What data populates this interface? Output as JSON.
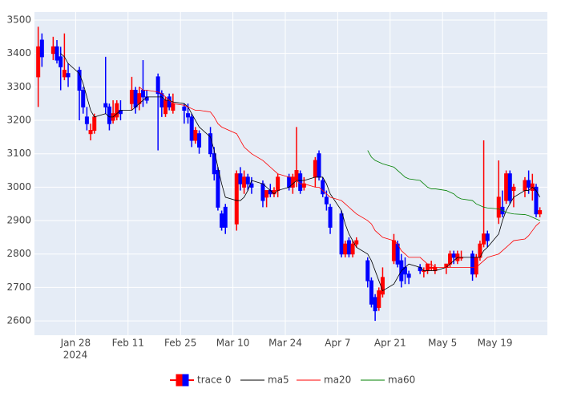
{
  "chart_data": {
    "type": "candlestick",
    "name": "trace 0",
    "increasing_color": "#ff0000",
    "decreasing_color": "#0000ff",
    "x": [
      "2024-01-18",
      "2024-01-19",
      "2024-01-22",
      "2024-01-23",
      "2024-01-24",
      "2024-01-25",
      "2024-01-26",
      "2024-01-29",
      "2024-01-30",
      "2024-01-31",
      "2024-02-01",
      "2024-02-02",
      "2024-02-05",
      "2024-02-06",
      "2024-02-07",
      "2024-02-08",
      "2024-02-09",
      "2024-02-12",
      "2024-02-13",
      "2024-02-14",
      "2024-02-15",
      "2024-02-16",
      "2024-02-19",
      "2024-02-20",
      "2024-02-21",
      "2024-02-22",
      "2024-02-23",
      "2024-02-26",
      "2024-02-27",
      "2024-02-28",
      "2024-02-29",
      "2024-03-01",
      "2024-03-04",
      "2024-03-05",
      "2024-03-06",
      "2024-03-07",
      "2024-03-08",
      "2024-03-11",
      "2024-03-12",
      "2024-03-13",
      "2024-03-14",
      "2024-03-15",
      "2024-03-18",
      "2024-03-19",
      "2024-03-20",
      "2024-03-21",
      "2024-03-22",
      "2024-03-25",
      "2024-03-26",
      "2024-03-27",
      "2024-03-28",
      "2024-03-29",
      "2024-04-01",
      "2024-04-02",
      "2024-04-03",
      "2024-04-04",
      "2024-04-05",
      "2024-04-08",
      "2024-04-09",
      "2024-04-10",
      "2024-04-11",
      "2024-04-12",
      "2024-04-15",
      "2024-04-16",
      "2024-04-17",
      "2024-04-18",
      "2024-04-19",
      "2024-04-22",
      "2024-04-23",
      "2024-04-24",
      "2024-04-25",
      "2024-04-26",
      "2024-04-29",
      "2024-04-30",
      "2024-05-01",
      "2024-05-02",
      "2024-05-03",
      "2024-05-06",
      "2024-05-07",
      "2024-05-08",
      "2024-05-09",
      "2024-05-10",
      "2024-05-13",
      "2024-05-14",
      "2024-05-15",
      "2024-05-16",
      "2024-05-17",
      "2024-05-20",
      "2024-05-21",
      "2024-05-22",
      "2024-05-23",
      "2024-05-24",
      "2024-05-27",
      "2024-05-28",
      "2024-05-29",
      "2024-05-30",
      "2024-05-31"
    ],
    "open": [
      3330,
      3440,
      3400,
      3420,
      3390,
      3330,
      3340,
      3350,
      3290,
      3210,
      3160,
      3170,
      3250,
      3240,
      3200,
      3210,
      3230,
      3250,
      3290,
      3250,
      3290,
      3270,
      3330,
      3280,
      3220,
      3270,
      3230,
      3240,
      3220,
      3210,
      3140,
      3160,
      3160,
      3100,
      3050,
      2920,
      2940,
      2890,
      3040,
      3000,
      3030,
      3010,
      3010,
      2970,
      2990,
      2980,
      2990,
      3030,
      3000,
      3020,
      3040,
      3000,
      3030,
      3100,
      3020,
      2970,
      2940,
      2920,
      2800,
      2840,
      2800,
      2830,
      2780,
      2720,
      2670,
      2640,
      2680,
      2780,
      2830,
      2780,
      2760,
      2740,
      2760,
      2750,
      2750,
      2760,
      2750,
      2760,
      2770,
      2800,
      2780,
      2790,
      2800,
      2740,
      2790,
      2830,
      2860,
      2910,
      2940,
      2960,
      3040,
      2990,
      2990,
      3020,
      2990,
      3000,
      2920
    ],
    "high": [
      3480,
      3460,
      3450,
      3440,
      3420,
      3460,
      3370,
      3360,
      3300,
      3240,
      3190,
      3220,
      3390,
      3250,
      3260,
      3260,
      3260,
      3330,
      3300,
      3300,
      3380,
      3290,
      3340,
      3290,
      3270,
      3280,
      3280,
      3250,
      3250,
      3220,
      3180,
      3170,
      3180,
      3120,
      3060,
      2930,
      2950,
      3050,
      3060,
      3050,
      3040,
      3030,
      3020,
      2990,
      3010,
      3000,
      3040,
      3040,
      3040,
      3180,
      3050,
      3030,
      3090,
      3110,
      3030,
      2990,
      2950,
      2930,
      2840,
      2850,
      2840,
      2850,
      2790,
      2730,
      2680,
      2700,
      2760,
      2860,
      2840,
      2800,
      2790,
      2750,
      2770,
      2760,
      2770,
      2780,
      2770,
      2770,
      2810,
      2810,
      2810,
      2810,
      2810,
      2800,
      2840,
      3140,
      2870,
      3080,
      2990,
      3050,
      3050,
      3010,
      3030,
      3050,
      3040,
      3010,
      2940
    ],
    "low": [
      3240,
      3360,
      3380,
      3370,
      3290,
      3320,
      3300,
      3200,
      3220,
      3170,
      3140,
      3160,
      3220,
      3170,
      3190,
      3200,
      3200,
      3230,
      3220,
      3230,
      3240,
      3250,
      3110,
      3210,
      3210,
      3230,
      3220,
      3190,
      3190,
      3120,
      3130,
      3100,
      3090,
      3020,
      2930,
      2870,
      2860,
      2870,
      2990,
      2980,
      2990,
      2980,
      2940,
      2940,
      2970,
      2970,
      2970,
      2990,
      2980,
      3000,
      2980,
      2990,
      3000,
      3020,
      2970,
      2930,
      2860,
      2790,
      2790,
      2790,
      2790,
      2820,
      2700,
      2640,
      2600,
      2630,
      2670,
      2770,
      2760,
      2700,
      2710,
      2710,
      2740,
      2730,
      2740,
      2750,
      2740,
      2740,
      2760,
      2770,
      2770,
      2780,
      2720,
      2730,
      2780,
      2820,
      2820,
      2890,
      2910,
      2950,
      2950,
      2940,
      2970,
      2980,
      2960,
      2910,
      2910
    ],
    "close": [
      3420,
      3390,
      3420,
      3380,
      3360,
      3350,
      3330,
      3290,
      3240,
      3190,
      3170,
      3210,
      3240,
      3190,
      3220,
      3250,
      3220,
      3290,
      3240,
      3280,
      3270,
      3260,
      3280,
      3240,
      3260,
      3240,
      3250,
      3230,
      3210,
      3140,
      3170,
      3120,
      3100,
      3040,
      2940,
      2880,
      2880,
      3040,
      3010,
      3030,
      3010,
      3000,
      2960,
      2990,
      2980,
      2990,
      3030,
      3000,
      3030,
      3050,
      2990,
      3010,
      3080,
      3030,
      2980,
      2950,
      2880,
      2800,
      2830,
      2800,
      2830,
      2840,
      2720,
      2650,
      2630,
      2690,
      2730,
      2840,
      2770,
      2720,
      2740,
      2730,
      2750,
      2750,
      2770,
      2760,
      2760,
      2770,
      2800,
      2790,
      2800,
      2790,
      2740,
      2790,
      2830,
      2860,
      2840,
      2970,
      2920,
      3040,
      2960,
      3000,
      3020,
      3000,
      3010,
      2920,
      2930
    ],
    "lines": [
      {
        "name": "ma5",
        "color": "#000000",
        "values": [
          null,
          null,
          null,
          null,
          3400,
          3390,
          3370,
          3340,
          3310,
          3270,
          3230,
          3210,
          3220,
          3210,
          3210,
          3220,
          3230,
          3230,
          3240,
          3250,
          3260,
          3270,
          3270,
          3270,
          3260,
          3260,
          3255,
          3250,
          3240,
          3220,
          3200,
          3180,
          3150,
          3110,
          3060,
          3010,
          2970,
          2960,
          2960,
          2970,
          2990,
          3020,
          3010,
          3000,
          2990,
          2980,
          2990,
          3000,
          3010,
          3020,
          3020,
          3020,
          3030,
          3030,
          3030,
          3010,
          2980,
          2930,
          2890,
          2860,
          2840,
          2820,
          2800,
          2780,
          2750,
          2720,
          2690,
          2710,
          2730,
          2750,
          2760,
          2770,
          2760,
          2750,
          2750,
          2750,
          2750,
          2760,
          2770,
          2780,
          2790,
          2790,
          2790,
          2790,
          2790,
          2810,
          2820,
          2860,
          2900,
          2930,
          2950,
          2970,
          2990,
          2990,
          3000,
          2990,
          2970
        ]
      },
      {
        "name": "ma20",
        "color": "#ff0000",
        "values": [
          null,
          null,
          null,
          null,
          null,
          null,
          null,
          null,
          null,
          null,
          null,
          null,
          null,
          null,
          null,
          null,
          null,
          null,
          null,
          3300,
          3290,
          3290,
          3285,
          3280,
          3270,
          3260,
          3250,
          3245,
          3240,
          3235,
          3230,
          3230,
          3225,
          3210,
          3190,
          3180,
          3175,
          3160,
          3140,
          3120,
          3110,
          3100,
          3080,
          3070,
          3060,
          3050,
          3040,
          3030,
          3030,
          3020,
          3010,
          3010,
          3000,
          3000,
          2990,
          2980,
          2970,
          2960,
          2950,
          2940,
          2930,
          2920,
          2900,
          2890,
          2870,
          2860,
          2850,
          2840,
          2830,
          2810,
          2800,
          2790,
          2790,
          2780,
          2770,
          2770,
          2760,
          2760,
          2760,
          2760,
          2760,
          2760,
          2760,
          2760,
          2770,
          2780,
          2790,
          2800,
          2810,
          2820,
          2830,
          2840,
          2845,
          2855,
          2870,
          2885,
          2895
        ]
      },
      {
        "name": "ma60",
        "color": "#008000",
        "values": [
          null,
          null,
          null,
          null,
          null,
          null,
          null,
          null,
          null,
          null,
          null,
          null,
          null,
          null,
          null,
          null,
          null,
          null,
          null,
          null,
          null,
          null,
          null,
          null,
          null,
          null,
          null,
          null,
          null,
          null,
          null,
          null,
          null,
          null,
          null,
          null,
          null,
          null,
          null,
          null,
          null,
          null,
          null,
          null,
          null,
          null,
          null,
          null,
          null,
          null,
          null,
          null,
          null,
          null,
          null,
          null,
          null,
          null,
          null,
          null,
          null,
          null,
          3110,
          3090,
          3080,
          3075,
          3070,
          3060,
          3050,
          3040,
          3030,
          3025,
          3020,
          3010,
          3000,
          2995,
          2995,
          2990,
          2985,
          2980,
          2970,
          2965,
          2960,
          2950,
          2945,
          2940,
          2938,
          2935,
          2930,
          2925,
          2922,
          2920,
          2918,
          2915,
          2910,
          2905,
          2900
        ]
      }
    ],
    "xlim": [
      "2024-01-17",
      "2024-06-02"
    ],
    "xticks": [
      {
        "value": "2024-01-28",
        "label": "Jan 28"
      },
      {
        "value": "2024-02-11",
        "label": "Feb 11"
      },
      {
        "value": "2024-02-25",
        "label": "Feb 25"
      },
      {
        "value": "2024-03-10",
        "label": "Mar 10"
      },
      {
        "value": "2024-03-24",
        "label": "Mar 24"
      },
      {
        "value": "2024-04-07",
        "label": "Apr 7"
      },
      {
        "value": "2024-04-21",
        "label": "Apr 21"
      },
      {
        "value": "2024-05-05",
        "label": "May 5"
      },
      {
        "value": "2024-05-19",
        "label": "May 19"
      }
    ],
    "x_year_label": "2024",
    "ylim": [
      2557,
      3524
    ],
    "yticks": [
      2600,
      2700,
      2800,
      2900,
      3000,
      3100,
      3200,
      3300,
      3400,
      3500
    ],
    "grid": true,
    "legend_position": "bottom"
  }
}
